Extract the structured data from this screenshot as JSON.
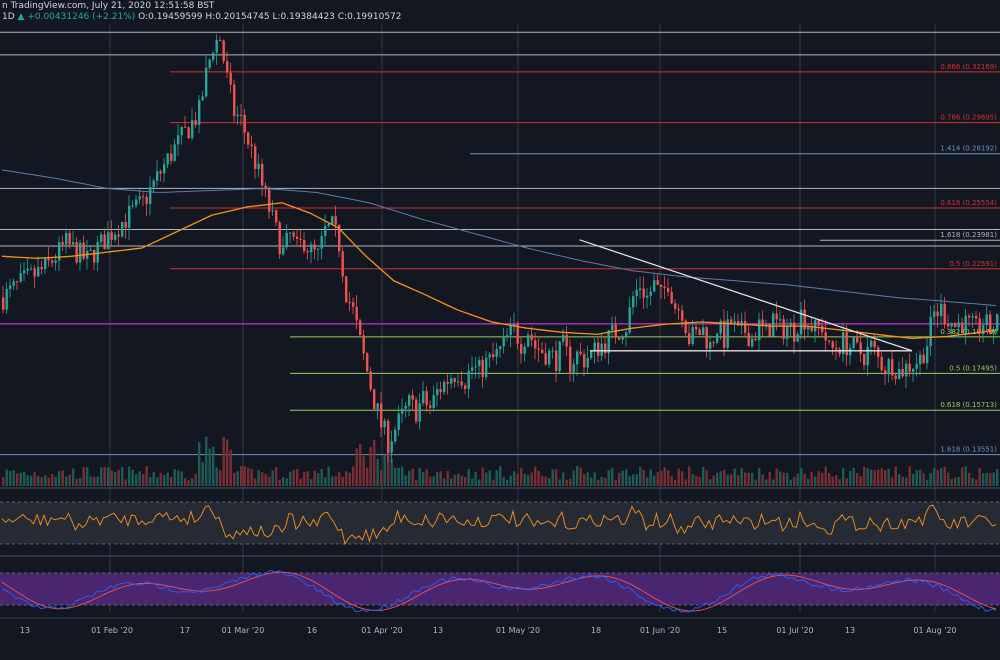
{
  "header": {
    "source": "n TradingView.com, July 21, 2020 12:51:58 BST",
    "interval": "1D",
    "change": "+0.00431246 (+2.21%)",
    "open": "O:0.19459599",
    "high": "H:0.20154745",
    "low": "L:0.19384423",
    "close": "C:0.19910572"
  },
  "chart_data": {
    "type": "candlestick",
    "colors": {
      "background": "#131722",
      "up": "#26a69a",
      "down": "#ef5350",
      "ma_fast": "#f7931a",
      "ma_slow": "#5b7ea8",
      "resistance_line": "#e57373",
      "fib_line": "#9ccc65",
      "blue_line": "#6a95c2",
      "current_level": "#e040fb",
      "rsi_line": "#f7931a",
      "stoch_k": "#2962ff",
      "stoch_d": "#ef5350",
      "stoch_band": "#4a2670"
    },
    "x_ticks": [
      "13",
      "01 Feb '20",
      "17",
      "01 Mar '20",
      "16",
      "01 Apr '20",
      "13",
      "01 May '20",
      "18",
      "01 Jun '20",
      "15",
      "01 Jul '20",
      "13",
      "01 Aug '20"
    ],
    "y_range": [
      0.128,
      0.345
    ],
    "levels": [
      {
        "label": "0.886 (0.32169)",
        "value": 0.3217,
        "color": "red"
      },
      {
        "label": "0.786 (0.29695)",
        "value": 0.297,
        "color": "red"
      },
      {
        "label": "1.414 (0.28192)",
        "value": 0.2819,
        "color": "blue"
      },
      {
        "label": "0.618 (0.25554)",
        "value": 0.2555,
        "color": "red"
      },
      {
        "label": "1.618 (0.23981)",
        "value": 0.2398,
        "color": "white"
      },
      {
        "label": "0.5 (0.22591)",
        "value": 0.2259,
        "color": "red"
      },
      {
        "label": "0.382 (0.19277)",
        "value": 0.1928,
        "color": "green"
      },
      {
        "label": "0.5 (0.17495)",
        "value": 0.175,
        "color": "green"
      },
      {
        "label": "0.618 (0.15713)",
        "value": 0.1571,
        "color": "green"
      },
      {
        "label": "1.618 (0.13551)",
        "value": 0.1355,
        "color": "blue"
      }
    ],
    "white_levels": [
      0.341,
      0.33,
      0.265,
      0.245,
      0.237
    ],
    "current_price": 0.1991,
    "price_path": [
      [
        0,
        0.212
      ],
      [
        6,
        0.22
      ],
      [
        12,
        0.226
      ],
      [
        18,
        0.238
      ],
      [
        24,
        0.23
      ],
      [
        30,
        0.242
      ],
      [
        36,
        0.252
      ],
      [
        40,
        0.258
      ],
      [
        44,
        0.27
      ],
      [
        48,
        0.282
      ],
      [
        52,
        0.292
      ],
      [
        56,
        0.302
      ],
      [
        58,
        0.32
      ],
      [
        60,
        0.335
      ],
      [
        62,
        0.338
      ],
      [
        64,
        0.318
      ],
      [
        66,
        0.302
      ],
      [
        68,
        0.298
      ],
      [
        70,
        0.288
      ],
      [
        72,
        0.278
      ],
      [
        74,
        0.266
      ],
      [
        76,
        0.255
      ],
      [
        78,
        0.244
      ],
      [
        80,
        0.234
      ],
      [
        82,
        0.242
      ],
      [
        84,
        0.235
      ],
      [
        86,
        0.24
      ],
      [
        88,
        0.234
      ],
      [
        90,
        0.232
      ],
      [
        92,
        0.244
      ],
      [
        94,
        0.246
      ],
      [
        96,
        0.238
      ],
      [
        98,
        0.215
      ],
      [
        100,
        0.205
      ],
      [
        102,
        0.19
      ],
      [
        104,
        0.176
      ],
      [
        106,
        0.162
      ],
      [
        108,
        0.15
      ],
      [
        110,
        0.142
      ],
      [
        112,
        0.148
      ],
      [
        114,
        0.154
      ],
      [
        116,
        0.16
      ],
      [
        118,
        0.157
      ],
      [
        120,
        0.162
      ],
      [
        122,
        0.158
      ],
      [
        124,
        0.166
      ],
      [
        126,
        0.17
      ],
      [
        128,
        0.174
      ],
      [
        130,
        0.176
      ],
      [
        132,
        0.172
      ],
      [
        134,
        0.178
      ],
      [
        136,
        0.176
      ],
      [
        138,
        0.18
      ],
      [
        140,
        0.182
      ],
      [
        142,
        0.186
      ],
      [
        144,
        0.192
      ],
      [
        146,
        0.196
      ],
      [
        148,
        0.19
      ],
      [
        150,
        0.196
      ],
      [
        152,
        0.188
      ],
      [
        154,
        0.186
      ],
      [
        156,
        0.184
      ],
      [
        158,
        0.182
      ],
      [
        160,
        0.188
      ],
      [
        162,
        0.18
      ],
      [
        164,
        0.184
      ],
      [
        166,
        0.182
      ],
      [
        168,
        0.184
      ],
      [
        170,
        0.188
      ],
      [
        172,
        0.19
      ],
      [
        174,
        0.194
      ],
      [
        176,
        0.196
      ],
      [
        178,
        0.198
      ],
      [
        180,
        0.212
      ],
      [
        182,
        0.218
      ],
      [
        184,
        0.212
      ],
      [
        186,
        0.218
      ],
      [
        188,
        0.212
      ],
      [
        190,
        0.22
      ],
      [
        192,
        0.208
      ],
      [
        194,
        0.206
      ],
      [
        196,
        0.192
      ],
      [
        198,
        0.194
      ],
      [
        200,
        0.196
      ],
      [
        202,
        0.188
      ],
      [
        204,
        0.198
      ],
      [
        206,
        0.192
      ],
      [
        208,
        0.2
      ],
      [
        210,
        0.194
      ],
      [
        212,
        0.196
      ],
      [
        214,
        0.192
      ],
      [
        216,
        0.198
      ],
      [
        218,
        0.194
      ],
      [
        220,
        0.202
      ],
      [
        222,
        0.196
      ],
      [
        224,
        0.198
      ],
      [
        226,
        0.196
      ],
      [
        228,
        0.204
      ],
      [
        230,
        0.2
      ],
      [
        232,
        0.196
      ],
      [
        234,
        0.198
      ],
      [
        236,
        0.186
      ],
      [
        238,
        0.188
      ],
      [
        240,
        0.19
      ],
      [
        242,
        0.188
      ],
      [
        244,
        0.186
      ],
      [
        246,
        0.184
      ],
      [
        248,
        0.188
      ],
      [
        250,
        0.182
      ],
      [
        252,
        0.178
      ],
      [
        254,
        0.18
      ],
      [
        256,
        0.176
      ],
      [
        258,
        0.178
      ],
      [
        260,
        0.18
      ],
      [
        262,
        0.182
      ],
      [
        264,
        0.19
      ],
      [
        266,
        0.204
      ],
      [
        268,
        0.206
      ],
      [
        270,
        0.202
      ],
      [
        272,
        0.198
      ],
      [
        274,
        0.2
      ],
      [
        276,
        0.198
      ],
      [
        278,
        0.196
      ],
      [
        280,
        0.2
      ],
      [
        282,
        0.196
      ],
      [
        284,
        0.199
      ]
    ],
    "ma_fast": [
      [
        0,
        0.232
      ],
      [
        10,
        0.231
      ],
      [
        20,
        0.232
      ],
      [
        30,
        0.234
      ],
      [
        40,
        0.236
      ],
      [
        50,
        0.244
      ],
      [
        60,
        0.252
      ],
      [
        70,
        0.256
      ],
      [
        80,
        0.258
      ],
      [
        88,
        0.253
      ],
      [
        96,
        0.246
      ],
      [
        104,
        0.232
      ],
      [
        112,
        0.22
      ],
      [
        120,
        0.214
      ],
      [
        130,
        0.206
      ],
      [
        140,
        0.2
      ],
      [
        150,
        0.197
      ],
      [
        160,
        0.195
      ],
      [
        170,
        0.194
      ],
      [
        180,
        0.197
      ],
      [
        190,
        0.199
      ],
      [
        200,
        0.2
      ],
      [
        210,
        0.199
      ],
      [
        220,
        0.198
      ],
      [
        230,
        0.198
      ],
      [
        240,
        0.196
      ],
      [
        250,
        0.194
      ],
      [
        260,
        0.192
      ],
      [
        270,
        0.193
      ],
      [
        284,
        0.196
      ]
    ],
    "ma_slow": [
      [
        0,
        0.274
      ],
      [
        15,
        0.27
      ],
      [
        30,
        0.265
      ],
      [
        45,
        0.263
      ],
      [
        60,
        0.264
      ],
      [
        75,
        0.265
      ],
      [
        90,
        0.263
      ],
      [
        105,
        0.258
      ],
      [
        120,
        0.25
      ],
      [
        135,
        0.243
      ],
      [
        150,
        0.236
      ],
      [
        165,
        0.23
      ],
      [
        180,
        0.225
      ],
      [
        195,
        0.222
      ],
      [
        210,
        0.22
      ],
      [
        225,
        0.218
      ],
      [
        240,
        0.215
      ],
      [
        255,
        0.212
      ],
      [
        270,
        0.21
      ],
      [
        284,
        0.208
      ]
    ],
    "triangle": {
      "top": [
        [
          165,
          0.24
        ],
        [
          260,
          0.186
        ]
      ],
      "bottom": [
        [
          168,
          0.186
        ],
        [
          260,
          0.186
        ]
      ]
    }
  }
}
